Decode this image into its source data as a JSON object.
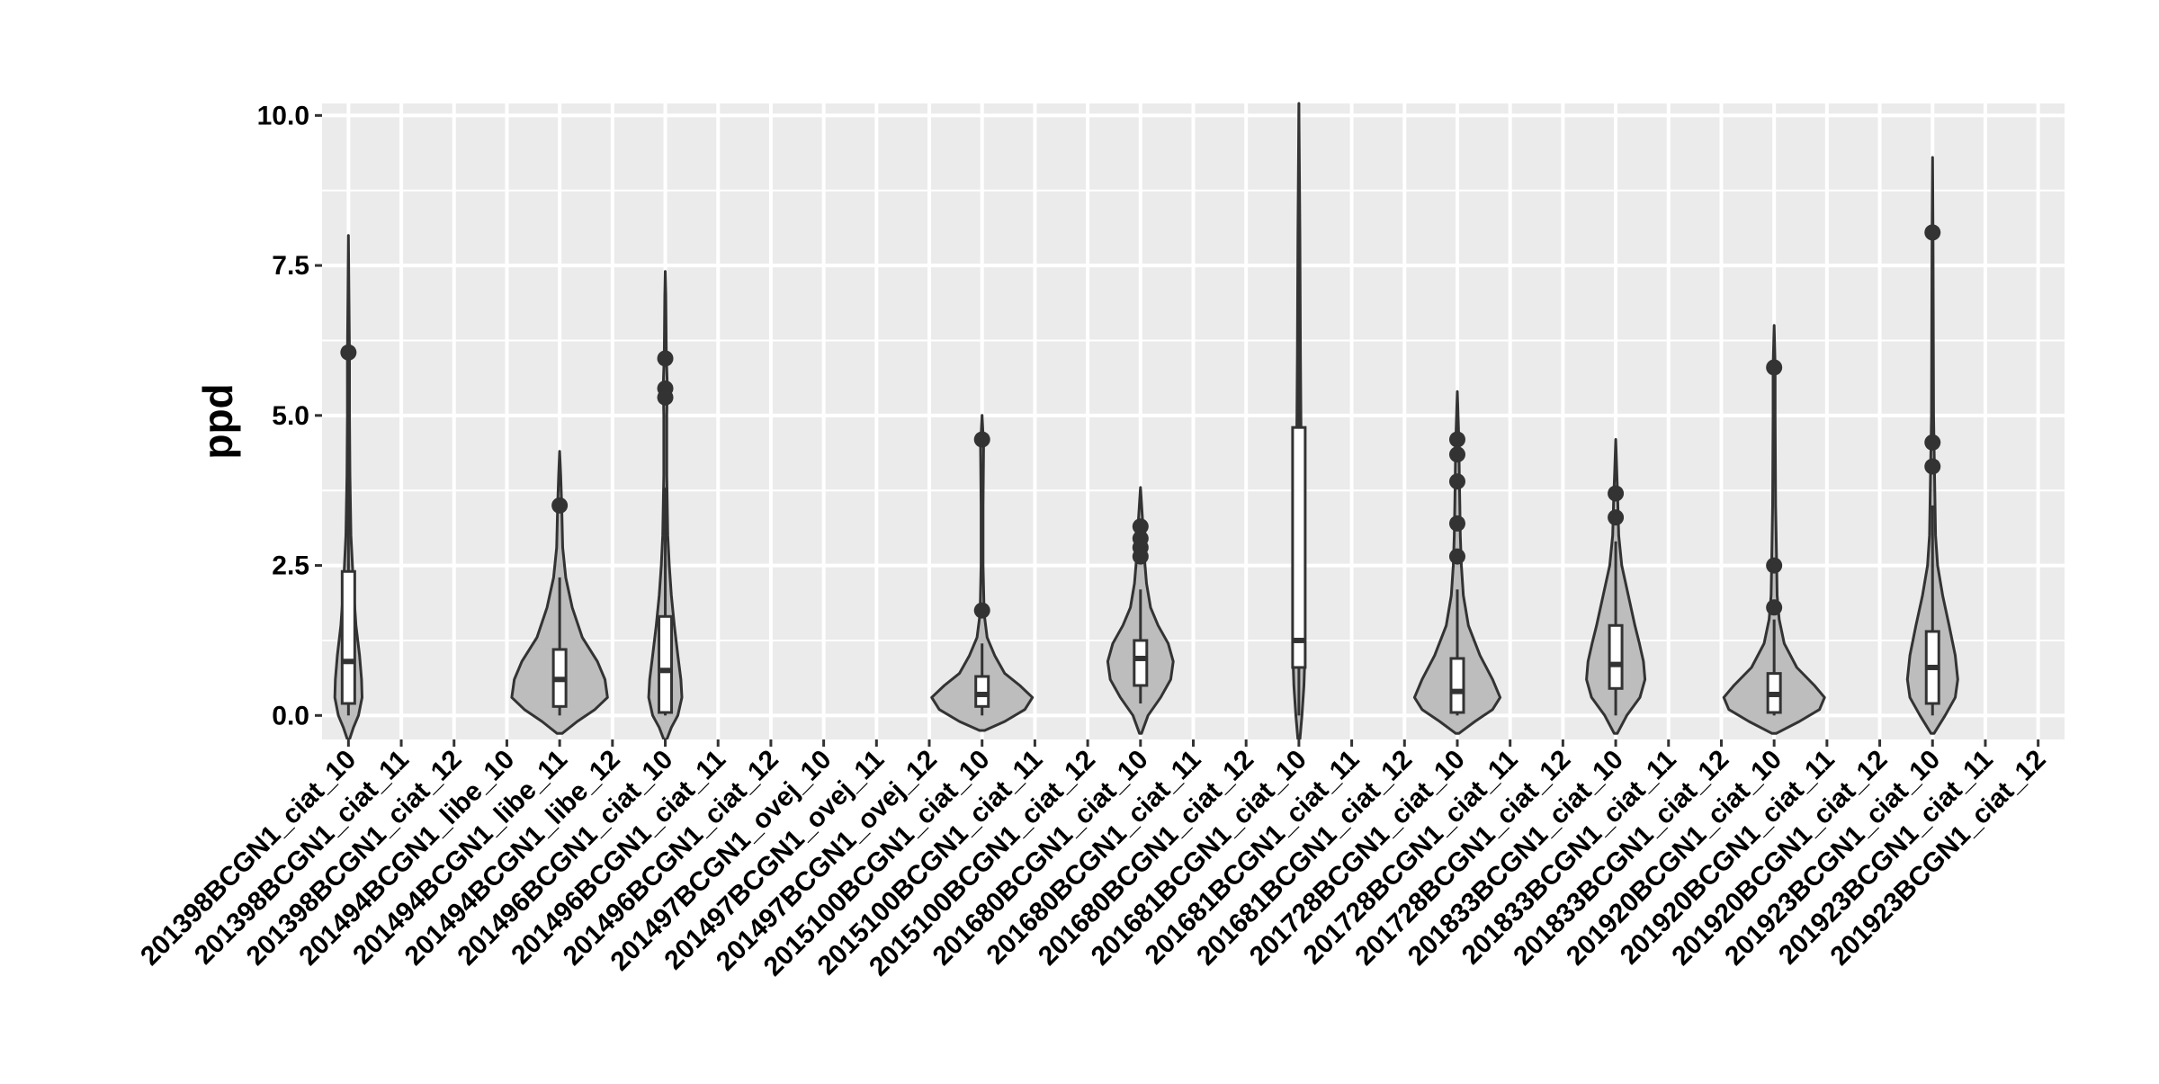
{
  "chart_data": {
    "type": "violin",
    "title": "",
    "xlabel": "",
    "ylabel": "ppd",
    "ylim": [
      -0.4,
      10.2
    ],
    "yticks": [
      0.0,
      2.5,
      5.0,
      7.5,
      10.0
    ],
    "ytick_labels": [
      "0.0",
      "2.5",
      "5.0",
      "7.5",
      "10.0"
    ],
    "grid": true,
    "legend": "none",
    "colors": {
      "panel": "#ebebeb",
      "grid": "#ffffff",
      "violin_fill": "#bdbdbd",
      "violin_stroke": "#333333",
      "box_fill": "#ffffff",
      "outlier": "#333333"
    },
    "categories": [
      "201398BCGN1_ciat_10",
      "201398BCGN1_ciat_11",
      "201398BCGN1_ciat_12",
      "201494BCGN1_libe_10",
      "201494BCGN1_libe_11",
      "201494BCGN1_libe_12",
      "201496BCGN1_ciat_10",
      "201496BCGN1_ciat_11",
      "201496BCGN1_ciat_12",
      "201497BCGN1_ovej_10",
      "201497BCGN1_ovej_11",
      "201497BCGN1_ovej_12",
      "2015100BCGN1_ciat_10",
      "2015100BCGN1_ciat_11",
      "2015100BCGN1_ciat_12",
      "201680BCGN1_ciat_10",
      "201680BCGN1_ciat_11",
      "201680BCGN1_ciat_12",
      "201681BCGN1_ciat_10",
      "201681BCGN1_ciat_11",
      "201681BCGN1_ciat_12",
      "201728BCGN1_ciat_10",
      "201728BCGN1_ciat_11",
      "201728BCGN1_ciat_12",
      "201833BCGN1_ciat_10",
      "201833BCGN1_ciat_11",
      "201833BCGN1_ciat_12",
      "201920BCGN1_ciat_10",
      "201920BCGN1_ciat_11",
      "201920BCGN1_ciat_12",
      "201923BCGN1_ciat_10",
      "201923BCGN1_ciat_11",
      "201923BCGN1_ciat_12"
    ],
    "violins": [
      {
        "category": "201398BCGN1_ciat_10",
        "min": -0.4,
        "max": 8.0,
        "box": {
          "q1": 0.2,
          "median": 0.9,
          "q3": 2.4,
          "whisker_low": 0.0,
          "whisker_high": 4.5
        },
        "outliers": [
          6.05
        ],
        "profile": [
          [
            -0.4,
            0.02
          ],
          [
            -0.2,
            0.1
          ],
          [
            0.0,
            0.2
          ],
          [
            0.3,
            0.27
          ],
          [
            0.6,
            0.26
          ],
          [
            1.0,
            0.22
          ],
          [
            1.5,
            0.15
          ],
          [
            2.0,
            0.11
          ],
          [
            2.5,
            0.08
          ],
          [
            3.0,
            0.05
          ],
          [
            4.0,
            0.03
          ],
          [
            5.0,
            0.02
          ],
          [
            6.0,
            0.02
          ],
          [
            7.0,
            0.01
          ],
          [
            8.0,
            0.0
          ]
        ]
      },
      {
        "category": "201494BCGN1_libe_11",
        "min": -0.3,
        "max": 4.4,
        "box": {
          "q1": 0.15,
          "median": 0.6,
          "q3": 1.1,
          "whisker_low": 0.0,
          "whisker_high": 2.3
        },
        "outliers": [
          3.5
        ],
        "profile": [
          [
            -0.3,
            0.05
          ],
          [
            -0.1,
            0.35
          ],
          [
            0.1,
            0.7
          ],
          [
            0.3,
            0.95
          ],
          [
            0.6,
            0.9
          ],
          [
            0.9,
            0.75
          ],
          [
            1.3,
            0.45
          ],
          [
            1.8,
            0.25
          ],
          [
            2.3,
            0.12
          ],
          [
            2.8,
            0.06
          ],
          [
            3.5,
            0.04
          ],
          [
            4.0,
            0.02
          ],
          [
            4.4,
            0.0
          ]
        ]
      },
      {
        "category": "201496BCGN1_ciat_10",
        "min": -0.4,
        "max": 7.4,
        "box": {
          "q1": 0.05,
          "median": 0.75,
          "q3": 1.65,
          "whisker_low": 0.0,
          "whisker_high": 3.8
        },
        "outliers": [
          5.95,
          5.45,
          5.3
        ],
        "profile": [
          [
            -0.4,
            0.03
          ],
          [
            -0.2,
            0.12
          ],
          [
            0.0,
            0.25
          ],
          [
            0.3,
            0.33
          ],
          [
            0.6,
            0.31
          ],
          [
            1.0,
            0.25
          ],
          [
            1.5,
            0.18
          ],
          [
            2.0,
            0.12
          ],
          [
            2.5,
            0.08
          ],
          [
            3.0,
            0.05
          ],
          [
            4.0,
            0.03
          ],
          [
            5.0,
            0.03
          ],
          [
            5.5,
            0.04
          ],
          [
            6.0,
            0.02
          ],
          [
            7.0,
            0.01
          ],
          [
            7.4,
            0.0
          ]
        ]
      },
      {
        "category": "2015100BCGN1_ciat_10",
        "min": -0.25,
        "max": 5.0,
        "box": {
          "q1": 0.15,
          "median": 0.35,
          "q3": 0.65,
          "whisker_low": 0.0,
          "whisker_high": 1.2
        },
        "outliers": [
          1.75,
          4.6
        ],
        "profile": [
          [
            -0.25,
            0.05
          ],
          [
            -0.1,
            0.45
          ],
          [
            0.1,
            0.85
          ],
          [
            0.3,
            1.0
          ],
          [
            0.5,
            0.75
          ],
          [
            0.7,
            0.45
          ],
          [
            1.0,
            0.25
          ],
          [
            1.3,
            0.1
          ],
          [
            1.7,
            0.04
          ],
          [
            2.5,
            0.02
          ],
          [
            3.5,
            0.02
          ],
          [
            4.5,
            0.03
          ],
          [
            5.0,
            0.0
          ]
        ]
      },
      {
        "category": "201680BCGN1_ciat_10",
        "min": -0.3,
        "max": 3.8,
        "box": {
          "q1": 0.5,
          "median": 0.95,
          "q3": 1.25,
          "whisker_low": 0.2,
          "whisker_high": 2.1
        },
        "outliers": [
          3.15,
          2.95,
          2.8,
          2.65
        ],
        "profile": [
          [
            -0.3,
            0.02
          ],
          [
            0.0,
            0.15
          ],
          [
            0.3,
            0.4
          ],
          [
            0.6,
            0.6
          ],
          [
            0.9,
            0.65
          ],
          [
            1.2,
            0.55
          ],
          [
            1.5,
            0.35
          ],
          [
            1.8,
            0.2
          ],
          [
            2.2,
            0.12
          ],
          [
            2.6,
            0.08
          ],
          [
            3.0,
            0.06
          ],
          [
            3.4,
            0.03
          ],
          [
            3.8,
            0.0
          ]
        ]
      },
      {
        "category": "201681BCGN1_ciat_10",
        "min": -0.4,
        "max": 10.2,
        "box": {
          "q1": 0.8,
          "median": 1.25,
          "q3": 4.8,
          "whisker_low": 0.0,
          "whisker_high": 10.2
        },
        "outliers": [],
        "profile": [
          [
            -0.4,
            0.02
          ],
          [
            0.0,
            0.06
          ],
          [
            0.5,
            0.1
          ],
          [
            1.0,
            0.12
          ],
          [
            1.5,
            0.1
          ],
          [
            2.0,
            0.08
          ],
          [
            3.0,
            0.06
          ],
          [
            4.0,
            0.05
          ],
          [
            5.0,
            0.04
          ],
          [
            6.0,
            0.03
          ],
          [
            7.0,
            0.025
          ],
          [
            8.0,
            0.02
          ],
          [
            9.0,
            0.01
          ],
          [
            10.2,
            0.0
          ]
        ]
      },
      {
        "category": "201728BCGN1_ciat_10",
        "min": -0.3,
        "max": 5.4,
        "box": {
          "q1": 0.05,
          "median": 0.4,
          "q3": 0.95,
          "whisker_low": 0.0,
          "whisker_high": 2.1
        },
        "outliers": [
          4.6,
          4.35,
          3.9,
          3.2,
          2.65
        ],
        "profile": [
          [
            -0.3,
            0.03
          ],
          [
            -0.1,
            0.35
          ],
          [
            0.1,
            0.7
          ],
          [
            0.3,
            0.85
          ],
          [
            0.6,
            0.7
          ],
          [
            1.0,
            0.45
          ],
          [
            1.5,
            0.22
          ],
          [
            2.0,
            0.12
          ],
          [
            2.5,
            0.08
          ],
          [
            3.0,
            0.06
          ],
          [
            3.5,
            0.05
          ],
          [
            4.0,
            0.04
          ],
          [
            4.6,
            0.03
          ],
          [
            5.4,
            0.0
          ]
        ]
      },
      {
        "category": "201833BCGN1_ciat_10",
        "min": -0.3,
        "max": 4.6,
        "box": {
          "q1": 0.45,
          "median": 0.85,
          "q3": 1.5,
          "whisker_low": 0.0,
          "whisker_high": 2.9
        },
        "outliers": [
          3.7,
          3.3
        ],
        "profile": [
          [
            -0.3,
            0.03
          ],
          [
            0.0,
            0.22
          ],
          [
            0.3,
            0.48
          ],
          [
            0.6,
            0.58
          ],
          [
            0.9,
            0.55
          ],
          [
            1.2,
            0.47
          ],
          [
            1.5,
            0.38
          ],
          [
            2.0,
            0.25
          ],
          [
            2.5,
            0.12
          ],
          [
            3.0,
            0.06
          ],
          [
            3.6,
            0.04
          ],
          [
            4.1,
            0.02
          ],
          [
            4.6,
            0.0
          ]
        ]
      },
      {
        "category": "201920BCGN1_ciat_10",
        "min": -0.3,
        "max": 6.5,
        "box": {
          "q1": 0.05,
          "median": 0.35,
          "q3": 0.7,
          "whisker_low": 0.0,
          "whisker_high": 1.6
        },
        "outliers": [
          5.8,
          2.5,
          1.8
        ],
        "profile": [
          [
            -0.3,
            0.04
          ],
          [
            -0.1,
            0.5
          ],
          [
            0.1,
            0.9
          ],
          [
            0.3,
            1.0
          ],
          [
            0.5,
            0.8
          ],
          [
            0.8,
            0.45
          ],
          [
            1.2,
            0.2
          ],
          [
            1.6,
            0.1
          ],
          [
            2.0,
            0.06
          ],
          [
            2.5,
            0.05
          ],
          [
            3.5,
            0.03
          ],
          [
            5.0,
            0.02
          ],
          [
            5.8,
            0.02
          ],
          [
            6.5,
            0.0
          ]
        ]
      },
      {
        "category": "201923BCGN1_ciat_10",
        "min": -0.3,
        "max": 9.3,
        "box": {
          "q1": 0.2,
          "median": 0.8,
          "q3": 1.4,
          "whisker_low": 0.0,
          "whisker_high": 3.5
        },
        "outliers": [
          8.05,
          4.55,
          4.15
        ],
        "profile": [
          [
            -0.3,
            0.03
          ],
          [
            0.0,
            0.25
          ],
          [
            0.3,
            0.45
          ],
          [
            0.6,
            0.5
          ],
          [
            1.0,
            0.45
          ],
          [
            1.5,
            0.33
          ],
          [
            2.0,
            0.2
          ],
          [
            2.5,
            0.1
          ],
          [
            3.0,
            0.06
          ],
          [
            4.0,
            0.04
          ],
          [
            5.0,
            0.02
          ],
          [
            6.5,
            0.015
          ],
          [
            8.0,
            0.01
          ],
          [
            9.3,
            0.0
          ]
        ]
      }
    ]
  }
}
